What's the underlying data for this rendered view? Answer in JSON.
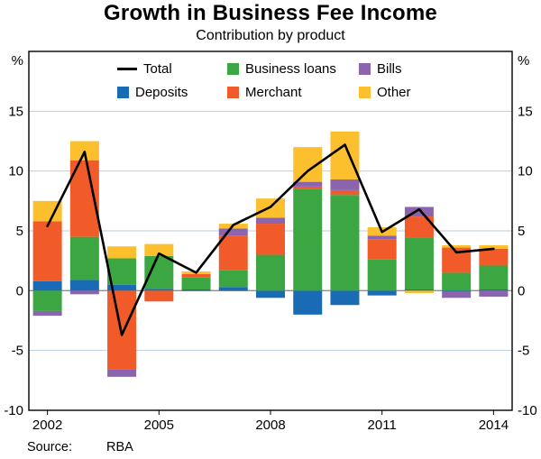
{
  "title": "Growth in Business Fee Income",
  "subtitle": "Contribution by product",
  "source": {
    "label": "Source:",
    "value": "RBA"
  },
  "chart_data": {
    "type": "bar",
    "stacked": true,
    "line_overlay": true,
    "unit": "%",
    "title": "Growth in Business Fee Income",
    "subtitle": "Contribution by product",
    "categories": [
      2002,
      2003,
      2004,
      2005,
      2006,
      2007,
      2008,
      2009,
      2010,
      2011,
      2012,
      2013,
      2014
    ],
    "x_tick_years": [
      2002,
      2005,
      2008,
      2011,
      2014
    ],
    "ylim": [
      -10,
      20
    ],
    "yticks": [
      -10,
      -5,
      0,
      5,
      10,
      15
    ],
    "grid_values": [
      -5,
      5,
      10,
      15
    ],
    "series": [
      {
        "name": "Deposits",
        "color": "#1a6bb5",
        "values": [
          0.8,
          0.9,
          0.5,
          0.15,
          0.1,
          0.3,
          -0.6,
          -2.0,
          -1.2,
          -0.4,
          0.1,
          -0.1,
          0.1
        ]
      },
      {
        "name": "Business loans",
        "color": "#3ba642",
        "values": [
          -1.7,
          3.6,
          2.2,
          2.75,
          1.0,
          1.4,
          3.0,
          8.5,
          8.0,
          2.6,
          4.3,
          1.5,
          2.0
        ]
      },
      {
        "name": "Merchant",
        "color": "#f15a29",
        "values": [
          5.0,
          6.4,
          -6.6,
          -0.9,
          0.3,
          2.9,
          2.6,
          0.2,
          0.4,
          1.7,
          1.8,
          2.1,
          1.4
        ]
      },
      {
        "name": "Bills",
        "color": "#8b64ad",
        "values": [
          -0.4,
          -0.3,
          -0.6,
          0.0,
          0.0,
          0.6,
          0.5,
          0.4,
          0.9,
          0.3,
          0.8,
          -0.5,
          -0.5
        ]
      },
      {
        "name": "Other",
        "color": "#fcbf2d",
        "values": [
          1.7,
          1.6,
          1.0,
          1.0,
          0.2,
          0.4,
          1.6,
          2.9,
          4.0,
          0.7,
          -0.2,
          0.2,
          0.3
        ]
      }
    ],
    "line": {
      "name": "Total",
      "color": "#000000",
      "values": [
        5.4,
        11.6,
        -3.7,
        3.1,
        1.5,
        5.5,
        7.0,
        10.0,
        12.2,
        4.9,
        6.8,
        3.2,
        3.5
      ]
    },
    "legend_rows": [
      [
        "Total",
        "Business loans",
        "Bills"
      ],
      [
        "Deposits",
        "Merchant",
        "Other"
      ]
    ],
    "style": {
      "grid_color": "#bccfe3",
      "zero_line_color": "#8f8f8f",
      "frame_color": "#000000"
    }
  }
}
